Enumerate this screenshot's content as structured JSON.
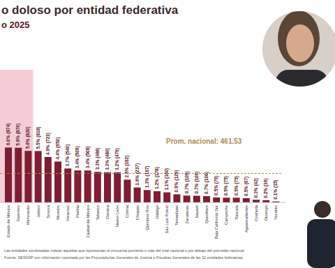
{
  "chart_data": {
    "type": "bar",
    "title": "o doloso por entidad federativa",
    "subtitle": "o 2025",
    "categories": [
      "Estado de México",
      "Guerrero",
      "Michoacán",
      "Jalisco",
      "Sonora",
      "Morelos",
      "Veracruz",
      "Puebla",
      "Ciudad de México",
      "Tabasco",
      "Oaxaca",
      "Nuevo León",
      "Colima",
      "Chiapas",
      "Quintana Roo",
      "Hidalgo",
      "San Luis Potosí",
      "Tamaulipas",
      "Zacatecas",
      "Nayarit",
      "Querétaro",
      "Baja California Sur",
      "Campeche",
      "Tlaxcala",
      "Aguascalientes",
      "Coahuila",
      "Durango",
      "Yucatán"
    ],
    "values": [
      874,
      870,
      820,
      818,
      723,
      650,
      540,
      509,
      508,
      486,
      480,
      479,
      362,
      237,
      197,
      178,
      160,
      129,
      109,
      106,
      100,
      79,
      75,
      75,
      67,
      42,
      36,
      15
    ],
    "value_labels": [
      "6.0% (874)",
      "5.9% (870)",
      "5.6% (820)",
      "5.5% (818)",
      "4.9% (723)",
      "4.4% (650)",
      "3.7% (540)",
      "3.4% (509)",
      "3.4% (508)",
      "3.3% (486)",
      "3.3% (480)",
      "3.2% (479)",
      "2.5% (362)",
      "1.6% (237)",
      "1.3% (197)",
      "1.2% (178)",
      "1.1% (160)",
      "0.9% (129)",
      "0.7% (109)",
      "0.7% (106)",
      "0.7% (100)",
      "0.5% (79)",
      "0.5% (75)",
      "0.5% (75)",
      "0.5% (67)",
      "0.3% (42)",
      "0.2% (36)",
      "0.1% (15)"
    ],
    "color": "#7f1d33",
    "ylim": [
      0,
      1000
    ],
    "grid": false,
    "data_labels": true,
    "tick_labels": "x",
    "reference_line": {
      "value": 461.53,
      "label": "Prom. nacional: 461.53"
    },
    "shaded_categories": [
      "Estado de México",
      "Guerrero",
      "Michoacán"
    ],
    "note": "Las entidades sombreadas indican aquellas que representan el cincuenta porciento o más del total nacional o por debajo del promedio nacional.",
    "source": "Fuente: SESNSP con información reportada por las Procuradurías Generales de Justicia o Fiscalías Generales de las 32 entidades federativas."
  }
}
